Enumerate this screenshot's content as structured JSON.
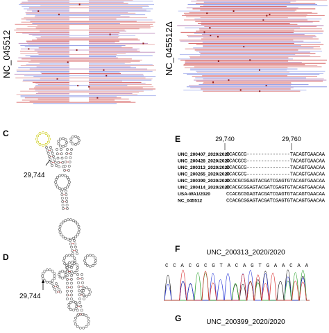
{
  "panels": {
    "alignment_left": {
      "label": "NC_045512"
    },
    "alignment_right": {
      "label": "NC_045512Δ"
    },
    "c": {
      "letter": "C",
      "position": "29,744"
    },
    "d": {
      "letter": "D",
      "position": "29,744"
    },
    "e": {
      "letter": "E",
      "positions": [
        "29,740",
        "29,760"
      ],
      "rows": [
        {
          "name": "UNC_200407_2020/2020",
          "sequence": "CCACGCG---------------TACAGTGAACAA"
        },
        {
          "name": "UNC_200428_2020/2020",
          "sequence": "CCACGCG---------------TACAGTGAACAA"
        },
        {
          "name": "UNC_200313_2020/2020",
          "sequence": "CCACGCG---------------TACAGTGAACAA"
        },
        {
          "name": "UNC_200265_2020/2020",
          "sequence": "CCACGCG---------------TACAGTGAACAA"
        },
        {
          "name": "UNC_200399_2020/2020",
          "sequence": "CCACGCGGAGTACGATCGAGTGTACAGTGAACAA"
        },
        {
          "name": "UNC_200414_2020/2020",
          "sequence": "CCACGCGGAGTACGATCGAGTGTACAGTGAACAA"
        },
        {
          "name": "USA-WA1/2020",
          "sequence": "CCACGCGGAGTACGATCGAGTGTACAGTGAACAA"
        },
        {
          "name": "NC_045512",
          "sequence": "CCACGCGGAGTACGATCGAGTGTACAGTGAACAA"
        }
      ]
    },
    "f": {
      "letter": "F",
      "title": "UNC_200313_2020/2020",
      "sequence": "CCACGCGTACAGTGAACAA"
    },
    "g": {
      "letter": "G",
      "title": "UNC_200399_2020/2020"
    }
  }
}
